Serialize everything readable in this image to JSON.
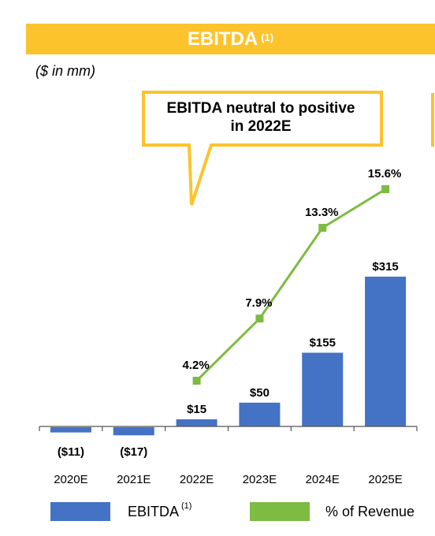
{
  "header": {
    "title": "EBITDA",
    "footnote": "(1)"
  },
  "units": "($ in mm)",
  "callout": {
    "line1": "EBITDA neutral to positive",
    "line2": "in 2022E"
  },
  "colors": {
    "banner": "#fcc32c",
    "bar": "#4472c4",
    "line": "#7dbb42",
    "callout_border": "#fcc32c"
  },
  "legend": {
    "bar_label": "EBITDA",
    "bar_footnote": "(1)",
    "line_label": "% of Revenue"
  },
  "chart_data": {
    "type": "bar",
    "categories": [
      "2020E",
      "2021E",
      "2022E",
      "2023E",
      "2024E",
      "2025E"
    ],
    "series": [
      {
        "name": "EBITDA",
        "type": "bar",
        "values": [
          -11,
          -17,
          15,
          50,
          155,
          315
        ],
        "labels": [
          "($11)",
          "($17)",
          "$15",
          "$50",
          "$155",
          "$315"
        ]
      },
      {
        "name": "% of Revenue",
        "type": "line",
        "values": [
          null,
          null,
          4.2,
          7.9,
          13.3,
          15.6
        ],
        "labels": [
          "",
          "",
          "4.2%",
          "7.9%",
          "13.3%",
          "15.6%"
        ]
      }
    ],
    "grid": false,
    "legend_position": "bottom"
  }
}
